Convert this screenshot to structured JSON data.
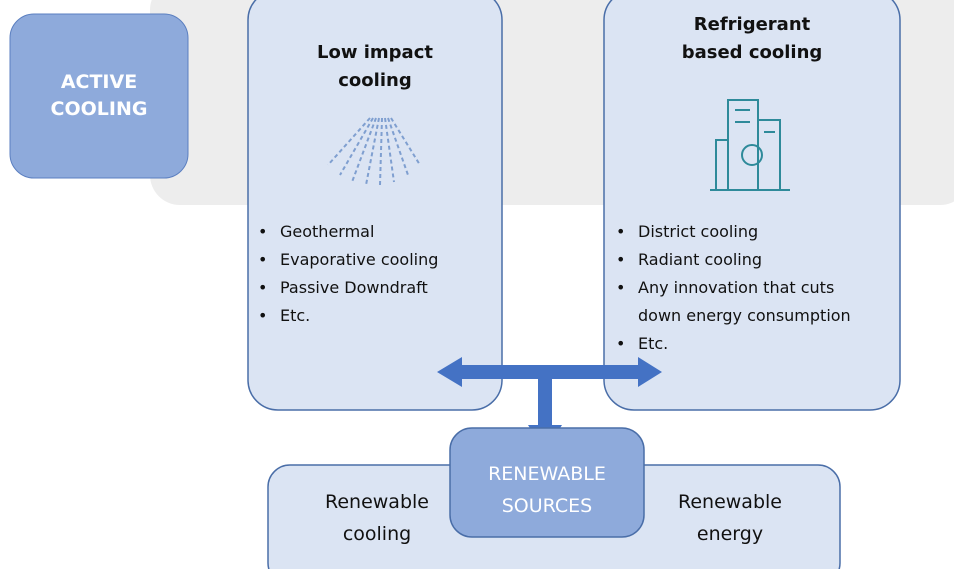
{
  "active": {
    "lines": [
      "ACTIVE",
      "COOLING"
    ]
  },
  "low_impact": {
    "title": [
      "Low impact",
      "cooling"
    ],
    "items": [
      "Geothermal",
      "Evaporative cooling",
      "Passive Downdraft",
      "Etc."
    ]
  },
  "refrigerant": {
    "title": [
      "Refrigerant",
      "based cooling"
    ],
    "items": [
      "District cooling",
      "Radiant cooling",
      "Any innovation that cuts",
      "down energy consumption",
      "Etc."
    ]
  },
  "renewable_sources": {
    "lines": [
      "RENEWABLE",
      "SOURCES"
    ]
  },
  "renewable_cooling": {
    "lines": [
      "Renewable",
      "cooling"
    ]
  },
  "renewable_energy": {
    "lines": [
      "Renewable",
      "energy"
    ]
  }
}
